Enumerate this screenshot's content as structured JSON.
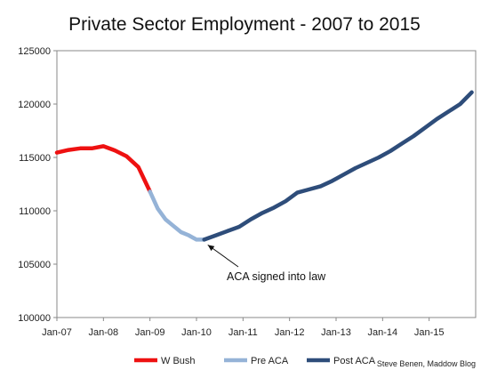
{
  "chart_data": {
    "type": "line",
    "title": "Private Sector Employment - 2007 to 2015",
    "xlabel": "",
    "ylabel": "",
    "x_ticks": [
      "Jan-07",
      "Jan-08",
      "Jan-09",
      "Jan-10",
      "Jan-11",
      "Jan-12",
      "Jan-13",
      "Jan-14",
      "Jan-15"
    ],
    "y_ticks": [
      "100000",
      "105000",
      "110000",
      "115000",
      "120000",
      "125000"
    ],
    "ylim": [
      100000,
      125000
    ],
    "xlim": [
      "2007-01",
      "2015-12"
    ],
    "grid": false,
    "legend_position": "bottom",
    "series": [
      {
        "name": "W Bush",
        "color": "#ee1111",
        "points": [
          [
            "2007-01",
            115450
          ],
          [
            "2007-04",
            115700
          ],
          [
            "2007-07",
            115850
          ],
          [
            "2007-10",
            115850
          ],
          [
            "2008-01",
            116050
          ],
          [
            "2008-04",
            115650
          ],
          [
            "2008-07",
            115100
          ],
          [
            "2008-10",
            114100
          ],
          [
            "2009-01",
            111800
          ]
        ]
      },
      {
        "name": "Pre ACA",
        "color": "#95b3d7",
        "points": [
          [
            "2009-01",
            111800
          ],
          [
            "2009-03",
            110200
          ],
          [
            "2009-05",
            109200
          ],
          [
            "2009-07",
            108600
          ],
          [
            "2009-09",
            108000
          ],
          [
            "2009-11",
            107700
          ],
          [
            "2009-12",
            107500
          ],
          [
            "2010-01",
            107300
          ],
          [
            "2010-03",
            107300
          ]
        ]
      },
      {
        "name": "Post ACA",
        "color": "#2e4d7a",
        "points": [
          [
            "2010-03",
            107300
          ],
          [
            "2010-06",
            107700
          ],
          [
            "2010-09",
            108100
          ],
          [
            "2010-12",
            108500
          ],
          [
            "2011-03",
            109200
          ],
          [
            "2011-06",
            109800
          ],
          [
            "2011-09",
            110300
          ],
          [
            "2011-12",
            110900
          ],
          [
            "2012-03",
            111700
          ],
          [
            "2012-06",
            112000
          ],
          [
            "2012-09",
            112300
          ],
          [
            "2012-12",
            112800
          ],
          [
            "2013-03",
            113400
          ],
          [
            "2013-06",
            114000
          ],
          [
            "2013-09",
            114500
          ],
          [
            "2013-12",
            115000
          ],
          [
            "2014-03",
            115600
          ],
          [
            "2014-06",
            116300
          ],
          [
            "2014-09",
            117000
          ],
          [
            "2014-12",
            117800
          ],
          [
            "2015-03",
            118600
          ],
          [
            "2015-06",
            119300
          ],
          [
            "2015-09",
            120000
          ],
          [
            "2015-12",
            121100
          ]
        ]
      }
    ],
    "annotations": [
      {
        "text": "ACA signed into law",
        "x": "2010-03",
        "y": 107300
      }
    ]
  },
  "credit": "Steve Benen, Maddow Blog"
}
